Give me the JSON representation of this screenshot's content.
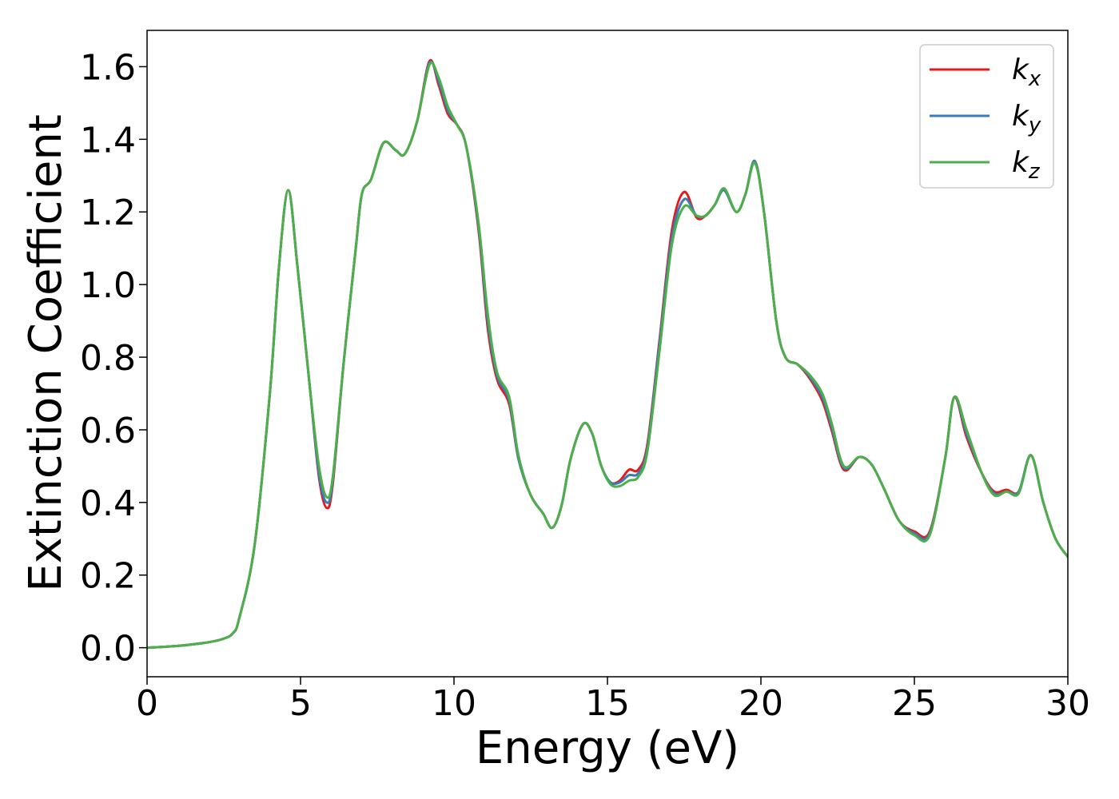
{
  "chart_data": {
    "type": "line",
    "xlabel": "Energy (eV)",
    "ylabel": "Extinction Coefficient",
    "xlim": [
      0,
      30
    ],
    "ylim": [
      -0.08,
      1.7
    ],
    "grid": false,
    "legend_position": "top-right",
    "x_ticks": [
      0,
      5,
      10,
      15,
      20,
      25,
      30
    ],
    "x_tick_labels": [
      "0",
      "5",
      "10",
      "15",
      "20",
      "25",
      "30"
    ],
    "y_ticks": [
      0.0,
      0.2,
      0.4,
      0.6,
      0.8,
      1.0,
      1.2,
      1.4,
      1.6
    ],
    "y_tick_labels": [
      "0.0",
      "0.2",
      "0.4",
      "0.6",
      "0.8",
      "1.0",
      "1.2",
      "1.4",
      "1.6"
    ],
    "series": [
      {
        "name": "k",
        "subscript": "x",
        "color": "#e41a1c",
        "points": [
          [
            0,
            0.0
          ],
          [
            1,
            0.005
          ],
          [
            2,
            0.015
          ],
          [
            2.5,
            0.025
          ],
          [
            2.8,
            0.04
          ],
          [
            3.0,
            0.08
          ],
          [
            3.5,
            0.28
          ],
          [
            4.0,
            0.7
          ],
          [
            4.3,
            1.05
          ],
          [
            4.6,
            1.26
          ],
          [
            4.9,
            1.05
          ],
          [
            5.3,
            0.72
          ],
          [
            5.6,
            0.47
          ],
          [
            5.85,
            0.385
          ],
          [
            6.05,
            0.45
          ],
          [
            6.4,
            0.78
          ],
          [
            6.8,
            1.1
          ],
          [
            7.0,
            1.25
          ],
          [
            7.3,
            1.29
          ],
          [
            7.7,
            1.39
          ],
          [
            8.1,
            1.37
          ],
          [
            8.4,
            1.36
          ],
          [
            8.8,
            1.45
          ],
          [
            9.2,
            1.615
          ],
          [
            9.5,
            1.55
          ],
          [
            9.8,
            1.47
          ],
          [
            10.1,
            1.44
          ],
          [
            10.4,
            1.38
          ],
          [
            10.8,
            1.15
          ],
          [
            11.1,
            0.88
          ],
          [
            11.4,
            0.74
          ],
          [
            11.8,
            0.67
          ],
          [
            12.1,
            0.52
          ],
          [
            12.5,
            0.42
          ],
          [
            12.9,
            0.37
          ],
          [
            13.2,
            0.33
          ],
          [
            13.5,
            0.39
          ],
          [
            13.8,
            0.52
          ],
          [
            14.2,
            0.615
          ],
          [
            14.5,
            0.59
          ],
          [
            14.8,
            0.5
          ],
          [
            15.1,
            0.455
          ],
          [
            15.4,
            0.46
          ],
          [
            15.7,
            0.49
          ],
          [
            16.0,
            0.49
          ],
          [
            16.3,
            0.56
          ],
          [
            16.7,
            0.85
          ],
          [
            17.1,
            1.15
          ],
          [
            17.5,
            1.255
          ],
          [
            17.9,
            1.185
          ],
          [
            18.2,
            1.19
          ],
          [
            18.5,
            1.22
          ],
          [
            18.8,
            1.26
          ],
          [
            19.2,
            1.2
          ],
          [
            19.5,
            1.25
          ],
          [
            19.8,
            1.34
          ],
          [
            20.1,
            1.2
          ],
          [
            20.5,
            0.9
          ],
          [
            20.8,
            0.8
          ],
          [
            21.2,
            0.78
          ],
          [
            21.6,
            0.74
          ],
          [
            22.0,
            0.68
          ],
          [
            22.3,
            0.6
          ],
          [
            22.7,
            0.49
          ],
          [
            23.2,
            0.525
          ],
          [
            23.6,
            0.505
          ],
          [
            24.0,
            0.44
          ],
          [
            24.5,
            0.35
          ],
          [
            25.0,
            0.32
          ],
          [
            25.5,
            0.32
          ],
          [
            26.0,
            0.52
          ],
          [
            26.3,
            0.69
          ],
          [
            26.7,
            0.58
          ],
          [
            27.2,
            0.48
          ],
          [
            27.6,
            0.43
          ],
          [
            28.0,
            0.435
          ],
          [
            28.4,
            0.43
          ],
          [
            28.8,
            0.53
          ],
          [
            29.2,
            0.4
          ],
          [
            29.6,
            0.3
          ],
          [
            30.0,
            0.25
          ]
        ]
      },
      {
        "name": "k",
        "subscript": "y",
        "color": "#377eb8",
        "points": [
          [
            0,
            0.0
          ],
          [
            1,
            0.005
          ],
          [
            2,
            0.015
          ],
          [
            2.5,
            0.025
          ],
          [
            2.8,
            0.04
          ],
          [
            3.0,
            0.08
          ],
          [
            3.5,
            0.28
          ],
          [
            4.0,
            0.7
          ],
          [
            4.3,
            1.05
          ],
          [
            4.6,
            1.26
          ],
          [
            4.9,
            1.05
          ],
          [
            5.3,
            0.72
          ],
          [
            5.6,
            0.48
          ],
          [
            5.85,
            0.4
          ],
          [
            6.05,
            0.46
          ],
          [
            6.4,
            0.78
          ],
          [
            6.8,
            1.1
          ],
          [
            7.0,
            1.25
          ],
          [
            7.3,
            1.29
          ],
          [
            7.7,
            1.39
          ],
          [
            8.1,
            1.37
          ],
          [
            8.4,
            1.36
          ],
          [
            8.8,
            1.45
          ],
          [
            9.2,
            1.61
          ],
          [
            9.5,
            1.56
          ],
          [
            9.8,
            1.48
          ],
          [
            10.1,
            1.44
          ],
          [
            10.4,
            1.38
          ],
          [
            10.8,
            1.16
          ],
          [
            11.1,
            0.9
          ],
          [
            11.4,
            0.75
          ],
          [
            11.8,
            0.68
          ],
          [
            12.1,
            0.52
          ],
          [
            12.5,
            0.42
          ],
          [
            12.9,
            0.37
          ],
          [
            13.2,
            0.33
          ],
          [
            13.5,
            0.39
          ],
          [
            13.8,
            0.52
          ],
          [
            14.2,
            0.615
          ],
          [
            14.5,
            0.59
          ],
          [
            14.8,
            0.5
          ],
          [
            15.1,
            0.455
          ],
          [
            15.4,
            0.455
          ],
          [
            15.7,
            0.475
          ],
          [
            16.0,
            0.48
          ],
          [
            16.3,
            0.55
          ],
          [
            16.7,
            0.84
          ],
          [
            17.1,
            1.13
          ],
          [
            17.5,
            1.235
          ],
          [
            17.9,
            1.19
          ],
          [
            18.2,
            1.19
          ],
          [
            18.5,
            1.22
          ],
          [
            18.8,
            1.26
          ],
          [
            19.2,
            1.2
          ],
          [
            19.5,
            1.25
          ],
          [
            19.8,
            1.34
          ],
          [
            20.1,
            1.2
          ],
          [
            20.5,
            0.9
          ],
          [
            20.8,
            0.8
          ],
          [
            21.2,
            0.78
          ],
          [
            21.6,
            0.745
          ],
          [
            22.0,
            0.69
          ],
          [
            22.3,
            0.61
          ],
          [
            22.7,
            0.495
          ],
          [
            23.2,
            0.525
          ],
          [
            23.6,
            0.505
          ],
          [
            24.0,
            0.44
          ],
          [
            24.5,
            0.35
          ],
          [
            25.0,
            0.315
          ],
          [
            25.5,
            0.315
          ],
          [
            26.0,
            0.52
          ],
          [
            26.3,
            0.69
          ],
          [
            26.7,
            0.59
          ],
          [
            27.2,
            0.48
          ],
          [
            27.6,
            0.425
          ],
          [
            28.0,
            0.43
          ],
          [
            28.4,
            0.43
          ],
          [
            28.8,
            0.53
          ],
          [
            29.2,
            0.4
          ],
          [
            29.6,
            0.3
          ],
          [
            30.0,
            0.25
          ]
        ]
      },
      {
        "name": "k",
        "subscript": "z",
        "color": "#4daf4a",
        "points": [
          [
            0,
            0.0
          ],
          [
            1,
            0.005
          ],
          [
            2,
            0.015
          ],
          [
            2.5,
            0.025
          ],
          [
            2.8,
            0.04
          ],
          [
            3.0,
            0.08
          ],
          [
            3.5,
            0.28
          ],
          [
            4.0,
            0.7
          ],
          [
            4.3,
            1.05
          ],
          [
            4.6,
            1.26
          ],
          [
            4.9,
            1.05
          ],
          [
            5.3,
            0.72
          ],
          [
            5.6,
            0.5
          ],
          [
            5.85,
            0.415
          ],
          [
            6.05,
            0.47
          ],
          [
            6.4,
            0.78
          ],
          [
            6.8,
            1.1
          ],
          [
            7.0,
            1.25
          ],
          [
            7.3,
            1.29
          ],
          [
            7.7,
            1.39
          ],
          [
            8.1,
            1.37
          ],
          [
            8.4,
            1.36
          ],
          [
            8.8,
            1.45
          ],
          [
            9.2,
            1.605
          ],
          [
            9.5,
            1.57
          ],
          [
            9.8,
            1.49
          ],
          [
            10.1,
            1.44
          ],
          [
            10.4,
            1.38
          ],
          [
            10.8,
            1.17
          ],
          [
            11.1,
            0.92
          ],
          [
            11.4,
            0.76
          ],
          [
            11.8,
            0.69
          ],
          [
            12.1,
            0.53
          ],
          [
            12.5,
            0.42
          ],
          [
            12.9,
            0.37
          ],
          [
            13.2,
            0.33
          ],
          [
            13.5,
            0.39
          ],
          [
            13.8,
            0.52
          ],
          [
            14.2,
            0.615
          ],
          [
            14.5,
            0.59
          ],
          [
            14.8,
            0.5
          ],
          [
            15.1,
            0.45
          ],
          [
            15.4,
            0.445
          ],
          [
            15.7,
            0.46
          ],
          [
            16.0,
            0.47
          ],
          [
            16.3,
            0.54
          ],
          [
            16.7,
            0.82
          ],
          [
            17.1,
            1.11
          ],
          [
            17.5,
            1.215
          ],
          [
            17.9,
            1.19
          ],
          [
            18.2,
            1.19
          ],
          [
            18.5,
            1.22
          ],
          [
            18.8,
            1.265
          ],
          [
            19.2,
            1.2
          ],
          [
            19.5,
            1.25
          ],
          [
            19.8,
            1.335
          ],
          [
            20.1,
            1.2
          ],
          [
            20.5,
            0.9
          ],
          [
            20.8,
            0.8
          ],
          [
            21.2,
            0.78
          ],
          [
            21.6,
            0.75
          ],
          [
            22.0,
            0.7
          ],
          [
            22.3,
            0.62
          ],
          [
            22.7,
            0.5
          ],
          [
            23.2,
            0.525
          ],
          [
            23.6,
            0.505
          ],
          [
            24.0,
            0.44
          ],
          [
            24.5,
            0.35
          ],
          [
            25.0,
            0.31
          ],
          [
            25.5,
            0.31
          ],
          [
            26.0,
            0.52
          ],
          [
            26.3,
            0.69
          ],
          [
            26.7,
            0.6
          ],
          [
            27.2,
            0.48
          ],
          [
            27.6,
            0.42
          ],
          [
            28.0,
            0.43
          ],
          [
            28.4,
            0.425
          ],
          [
            28.8,
            0.53
          ],
          [
            29.2,
            0.4
          ],
          [
            29.6,
            0.3
          ],
          [
            30.0,
            0.25
          ]
        ]
      }
    ]
  }
}
